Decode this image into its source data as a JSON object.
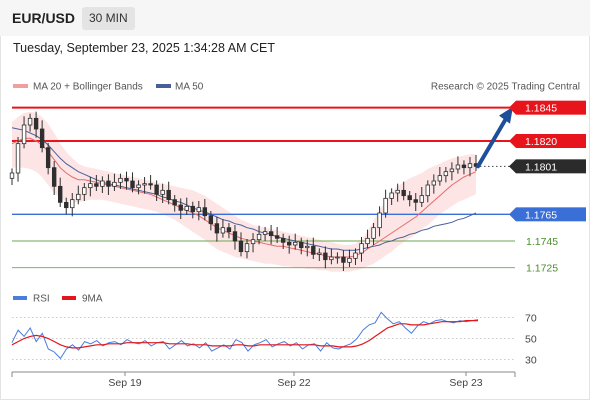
{
  "header": {
    "pair": "EUR/USD",
    "timeframe": "30 MIN",
    "datetime": "Tuesday, September 23, 2025 1:34:28 AM CET"
  },
  "legend": {
    "bb": "MA 20 + Bollinger Bands",
    "ma50": "MA 50",
    "copyright": "Research © 2025 Trading Central",
    "rsi": "RSI",
    "ma9": "9MA"
  },
  "colors": {
    "red": "#e8141c",
    "blue": "#3a6fd8",
    "green": "#6aa84f",
    "ma20": "#e86a6a",
    "bb_fill": "#fde1e1",
    "candle": "#2f2f2f",
    "ma50": "#4a5f9a",
    "arrow": "#1f4f9a",
    "current_bg": "#2b2b2b",
    "rsi": "#4a7de0",
    "ma9": "#e0171c"
  },
  "chart_data": [
    {
      "type": "line",
      "title": "EUR/USD 30 MIN",
      "x_ticks": [
        "Sep 19",
        "Sep 22",
        "Sep 23"
      ],
      "ylim": [
        1.1715,
        1.185
      ],
      "current_price": "1.1801",
      "levels": [
        {
          "label": "1.1845",
          "value": 1.1845,
          "style": "resistance"
        },
        {
          "label": "1.1820",
          "value": 1.182,
          "style": "resistance"
        },
        {
          "label": "1.1765",
          "value": 1.1765,
          "style": "pivot"
        },
        {
          "label": "1.1745",
          "value": 1.1745,
          "style": "support"
        },
        {
          "label": "1.1725",
          "value": 1.1725,
          "style": "support"
        }
      ],
      "projection": {
        "from": 1.1801,
        "to": 1.1845
      },
      "series": [
        {
          "name": "Close",
          "values": [
            1.1796,
            1.1818,
            1.1832,
            1.1837,
            1.1829,
            1.1815,
            1.18,
            1.1786,
            1.1774,
            1.177,
            1.1776,
            1.178,
            1.1785,
            1.1788,
            1.1786,
            1.179,
            1.1786,
            1.1789,
            1.1792,
            1.179,
            1.1785,
            1.1787,
            1.1788,
            1.1787,
            1.178,
            1.1783,
            1.1776,
            1.1772,
            1.1768,
            1.1771,
            1.1767,
            1.177,
            1.1764,
            1.1758,
            1.1751,
            1.1755,
            1.1752,
            1.1745,
            1.1737,
            1.1743,
            1.1746,
            1.175,
            1.1752,
            1.1749,
            1.1747,
            1.1744,
            1.1742,
            1.1744,
            1.174,
            1.1741,
            1.1735,
            1.1736,
            1.1731,
            1.1733,
            1.1733,
            1.1729,
            1.1732,
            1.1736,
            1.1743,
            1.1747,
            1.1755,
            1.1766,
            1.1777,
            1.1781,
            1.1783,
            1.1779,
            1.1776,
            1.1774,
            1.1779,
            1.1787,
            1.179,
            1.1794,
            1.1797,
            1.1799,
            1.1802,
            1.18,
            1.1803,
            1.1801
          ]
        },
        {
          "name": "MA 20",
          "values": [
            1.1818,
            1.182,
            1.1822,
            1.1822,
            1.182,
            1.1817,
            1.1812,
            1.1806,
            1.18,
            1.1796,
            1.1793,
            1.1791,
            1.1791,
            1.179,
            1.1789,
            1.1788,
            1.1787,
            1.1786,
            1.1785,
            1.1784,
            1.1783,
            1.1782,
            1.1781,
            1.178,
            1.1778,
            1.1776,
            1.1774,
            1.1772,
            1.177,
            1.1768,
            1.1766,
            1.1764,
            1.1761,
            1.1758,
            1.1755,
            1.1753,
            1.1751,
            1.1749,
            1.1747,
            1.1746,
            1.1745,
            1.1744,
            1.1743,
            1.1742,
            1.1741,
            1.1741,
            1.174,
            1.1739,
            1.1738,
            1.1737,
            1.1736,
            1.1735,
            1.1734,
            1.1733,
            1.1733,
            1.1733,
            1.1733,
            1.1734,
            1.1736,
            1.1739,
            1.1742,
            1.1745,
            1.1748,
            1.1751,
            1.1754,
            1.1757,
            1.176,
            1.1763,
            1.1767,
            1.1771,
            1.1775,
            1.1779,
            1.1783,
            1.1787,
            1.179,
            1.1793,
            1.1795,
            1.1797
          ]
        },
        {
          "name": "Upper band",
          "values": [
            1.1834,
            1.1838,
            1.1841,
            1.1842,
            1.1841,
            1.1838,
            1.1833,
            1.1826,
            1.1818,
            1.1812,
            1.1807,
            1.1803,
            1.1801,
            1.18,
            1.1799,
            1.1798,
            1.1797,
            1.1796,
            1.1795,
            1.1794,
            1.1793,
            1.1792,
            1.1791,
            1.179,
            1.1789,
            1.1788,
            1.1787,
            1.1786,
            1.1785,
            1.1784,
            1.1783,
            1.1781,
            1.1779,
            1.1776,
            1.1773,
            1.177,
            1.1767,
            1.1764,
            1.1761,
            1.1759,
            1.1757,
            1.1756,
            1.1755,
            1.1754,
            1.1753,
            1.1752,
            1.1751,
            1.175,
            1.1749,
            1.1748,
            1.1747,
            1.1746,
            1.1745,
            1.1744,
            1.1743,
            1.1742,
            1.1742,
            1.1743,
            1.1746,
            1.1752,
            1.176,
            1.1768,
            1.1775,
            1.1781,
            1.1786,
            1.1789,
            1.1792,
            1.1794,
            1.1796,
            1.1799,
            1.1801,
            1.1803,
            1.1805,
            1.1807,
            1.1808,
            1.1809,
            1.181,
            1.181
          ]
        },
        {
          "name": "Lower band",
          "values": [
            1.18,
            1.18,
            1.18,
            1.1799,
            1.1797,
            1.1793,
            1.1787,
            1.1781,
            1.1777,
            1.1775,
            1.1774,
            1.1774,
            1.1775,
            1.1776,
            1.1776,
            1.1776,
            1.1775,
            1.1774,
            1.1773,
            1.1772,
            1.1771,
            1.177,
            1.1769,
            1.1768,
            1.1767,
            1.1765,
            1.1763,
            1.1761,
            1.1758,
            1.1755,
            1.1752,
            1.1749,
            1.1746,
            1.1742,
            1.1739,
            1.1737,
            1.1735,
            1.1733,
            1.1732,
            1.1731,
            1.173,
            1.1729,
            1.1728,
            1.1728,
            1.1727,
            1.1726,
            1.1726,
            1.1725,
            1.1725,
            1.1724,
            1.1724,
            1.1723,
            1.1723,
            1.1722,
            1.1722,
            1.1722,
            1.1722,
            1.1723,
            1.1724,
            1.1726,
            1.1728,
            1.1731,
            1.1734,
            1.1737,
            1.1741,
            1.1744,
            1.1747,
            1.175,
            1.1754,
            1.1757,
            1.1761,
            1.1765,
            1.1768,
            1.1771,
            1.1774,
            1.1776,
            1.1778,
            1.178
          ]
        },
        {
          "name": "MA 50",
          "values": [
            1.183,
            1.1829,
            1.1828,
            1.1826,
            1.1824,
            1.1821,
            1.1817,
            1.1812,
            1.1807,
            1.1803,
            1.18,
            1.1797,
            1.1795,
            1.1793,
            1.1791,
            1.1789,
            1.1788,
            1.1787,
            1.1786,
            1.1785,
            1.1784,
            1.1783,
            1.1782,
            1.1781,
            1.178,
            1.1778,
            1.1777,
            1.1775,
            1.1774,
            1.1772,
            1.177,
            1.1768,
            1.1767,
            1.1765,
            1.1763,
            1.1761,
            1.176,
            1.1758,
            1.1757,
            1.1755,
            1.1754,
            1.1752,
            1.1751,
            1.175,
            1.1748,
            1.1747,
            1.1746,
            1.1745,
            1.1744,
            1.1743,
            1.1742,
            1.1741,
            1.174,
            1.1739,
            1.1739,
            1.1738,
            1.1738,
            1.1738,
            1.1739,
            1.174,
            1.1741,
            1.1742,
            1.1744,
            1.1745,
            1.1747,
            1.1748,
            1.175,
            1.1751,
            1.1753,
            1.1754,
            1.1756,
            1.1757,
            1.1758,
            1.1759,
            1.1761,
            1.1762,
            1.1764,
            1.1766
          ]
        }
      ]
    },
    {
      "type": "line",
      "title": "RSI",
      "ylim": [
        20,
        80
      ],
      "y_ticks": [
        "70",
        "50",
        "30"
      ],
      "series": [
        {
          "name": "RSI",
          "values": [
            46,
            58,
            52,
            60,
            47,
            55,
            40,
            37,
            31,
            40,
            44,
            39,
            47,
            45,
            48,
            43,
            46,
            47,
            44,
            49,
            46,
            45,
            48,
            43,
            46,
            47,
            40,
            44,
            48,
            43,
            45,
            41,
            46,
            38,
            41,
            44,
            40,
            49,
            46,
            38,
            44,
            46,
            49,
            42,
            45,
            47,
            43,
            46,
            40,
            44,
            45,
            38,
            46,
            41,
            40,
            43,
            45,
            50,
            58,
            63,
            65,
            75,
            69,
            64,
            66,
            60,
            55,
            62,
            66,
            64,
            67,
            68,
            66,
            65,
            67,
            66,
            67,
            68
          ]
        },
        {
          "name": "9MA",
          "values": [
            44,
            47,
            50,
            52,
            53,
            52,
            50,
            47,
            44,
            42,
            41,
            41,
            42,
            43,
            44,
            44,
            45,
            45,
            45,
            46,
            46,
            46,
            46,
            46,
            46,
            46,
            45,
            45,
            45,
            45,
            44,
            44,
            44,
            43,
            43,
            43,
            43,
            44,
            44,
            43,
            43,
            44,
            44,
            44,
            44,
            44,
            44,
            44,
            44,
            44,
            44,
            43,
            43,
            43,
            42,
            42,
            42,
            43,
            45,
            48,
            52,
            56,
            60,
            62,
            64,
            64,
            63,
            63,
            63,
            64,
            65,
            66,
            66,
            66,
            66,
            67,
            67,
            67
          ]
        }
      ]
    }
  ]
}
